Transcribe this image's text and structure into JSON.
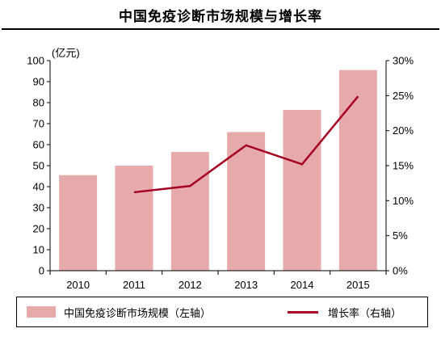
{
  "title": "中国免疫诊断市场规模与增长率",
  "colors": {
    "bar": "#e6aaaa",
    "line": "#a50021",
    "axis": "#000000"
  },
  "chart_data": {
    "type": "bar",
    "categories": [
      "2010",
      "2011",
      "2012",
      "2013",
      "2014",
      "2015"
    ],
    "series": [
      {
        "name": "中国免疫诊断市场规模（左轴）",
        "type": "bar",
        "axis": "left",
        "values": [
          45.5,
          50,
          56.5,
          66,
          76.5,
          95.5
        ]
      },
      {
        "name": "增长率（右轴）",
        "type": "line",
        "axis": "right",
        "values": [
          null,
          11.2,
          12.1,
          17.9,
          15.2,
          24.9
        ]
      }
    ],
    "left_axis": {
      "unit_label": "(亿元)",
      "ylim": [
        0,
        100
      ],
      "ticks": [
        "0",
        "10",
        "20",
        "30",
        "40",
        "50",
        "60",
        "70",
        "80",
        "90",
        "100"
      ]
    },
    "right_axis": {
      "ylim": [
        0,
        30
      ],
      "ticks": [
        "0%",
        "5%",
        "10%",
        "15%",
        "20%",
        "25%",
        "30%"
      ]
    },
    "grid": false,
    "legend_position": "bottom"
  }
}
